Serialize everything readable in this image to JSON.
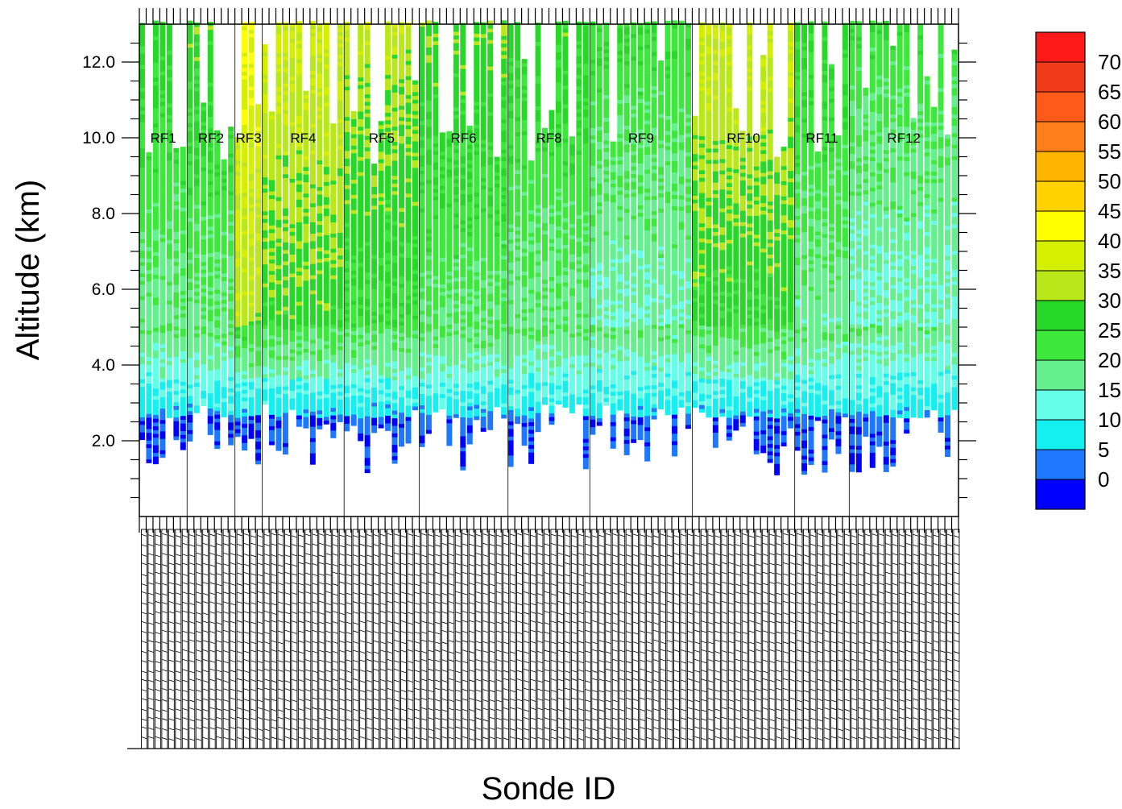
{
  "chart_data": {
    "type": "heatmap",
    "xlabel": "Sonde ID",
    "ylabel": "Altitude (km)",
    "ylim": [
      0,
      13
    ],
    "yticks": [
      2.0,
      4.0,
      6.0,
      8.0,
      10.0,
      12.0
    ],
    "ytick_labels": [
      "2.0",
      "4.0",
      "6.0",
      "8.0",
      "10.0",
      "12.0"
    ],
    "num_sondes": 120,
    "flights": [
      {
        "name": "RF1",
        "start": 0,
        "end": 7
      },
      {
        "name": "RF2",
        "start": 7,
        "end": 14
      },
      {
        "name": "RF3",
        "start": 14,
        "end": 18
      },
      {
        "name": "RF4",
        "start": 18,
        "end": 30
      },
      {
        "name": "RF5",
        "start": 30,
        "end": 41
      },
      {
        "name": "RF6",
        "start": 41,
        "end": 54
      },
      {
        "name": "RF8",
        "start": 54,
        "end": 66
      },
      {
        "name": "RF9",
        "start": 66,
        "end": 81
      },
      {
        "name": "RF10",
        "start": 81,
        "end": 96
      },
      {
        "name": "RF11",
        "start": 96,
        "end": 104
      },
      {
        "name": "RF12",
        "start": 104,
        "end": 120
      }
    ],
    "colorbar": {
      "labels": [
        "70",
        "65",
        "60",
        "55",
        "50",
        "45",
        "40",
        "35",
        "30",
        "25",
        "20",
        "15",
        "10",
        "5",
        "0"
      ],
      "colors": [
        "#ff1a1a",
        "#f03a1a",
        "#ff5a1a",
        "#ff7f1a",
        "#ffb400",
        "#ffd200",
        "#ffff00",
        "#d4f000",
        "#b8e81a",
        "#28d828",
        "#3ce83c",
        "#64f08c",
        "#64ffe6",
        "#14f0f0",
        "#1e78ff",
        "#0000ff"
      ]
    },
    "sonde_ids_note": "rotated sonde ID labels along x-axis (illegible at this resolution)"
  }
}
